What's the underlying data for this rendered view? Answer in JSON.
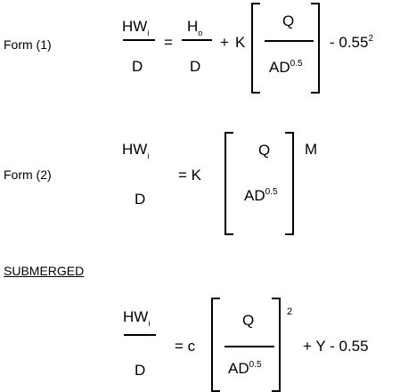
{
  "form1": {
    "label": "Form (1)",
    "lhs_num_main": "HW",
    "lhs_num_sub": "i",
    "lhs_den": "D",
    "equals": "=",
    "h_main": "H",
    "h_sub": "o",
    "h_den": "D",
    "plus": "+",
    "coef": "K",
    "q": "Q",
    "ad_main": "AD",
    "ad_sup": "0.5",
    "tail_main": "-  0.55",
    "tail_sup": "2"
  },
  "form2": {
    "label": "Form (2)",
    "lhs_num_main": "HW",
    "lhs_num_sub": "i",
    "lhs_den": "D",
    "equals_coef": "=  K",
    "q": "Q",
    "ad_main": "AD",
    "ad_sup": "0.5",
    "exponent": "M"
  },
  "submerged": {
    "heading": "SUBMERGED",
    "lhs_num_main": "HW",
    "lhs_num_sub": "i",
    "lhs_den": "D",
    "equals_coef": "=  c",
    "q": "Q",
    "ad_main": "AD",
    "ad_sup": "0.5",
    "exponent": "2",
    "tail": "+  Y  -  0.55"
  }
}
